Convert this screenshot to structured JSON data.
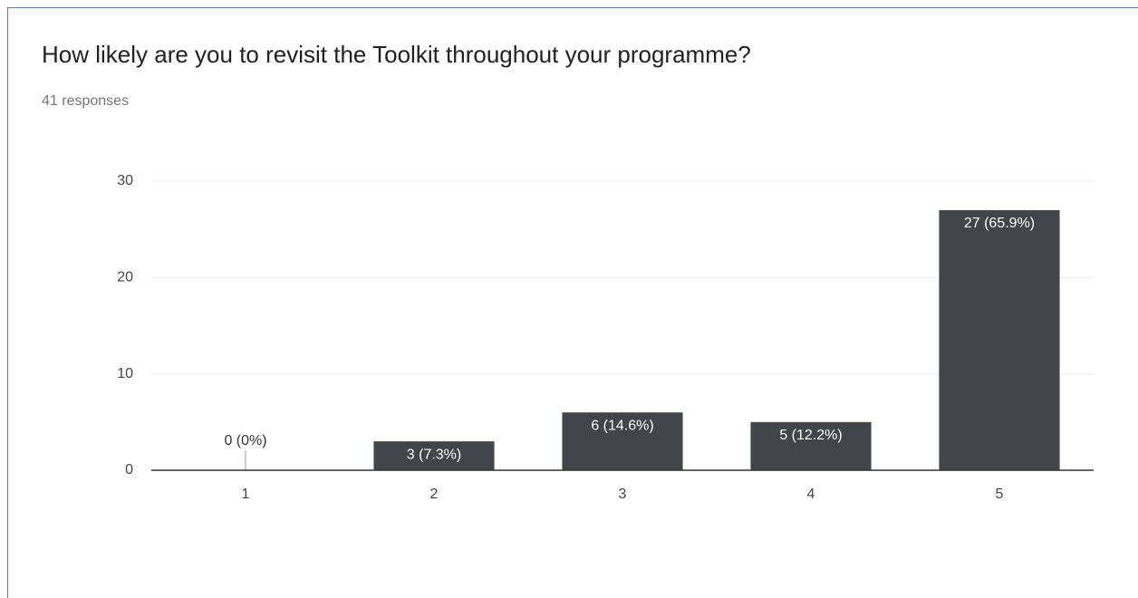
{
  "chart_data": {
    "type": "bar",
    "title": "How likely are you to revisit the Toolkit throughout your programme?",
    "subtitle": "41 responses",
    "categories": [
      "1",
      "2",
      "3",
      "4",
      "5"
    ],
    "values": [
      0,
      3,
      6,
      5,
      27
    ],
    "value_labels": [
      "0 (0%)",
      "3 (7.3%)",
      "6 (14.6%)",
      "5 (12.2%)",
      "27 (65.9%)"
    ],
    "color": "#424549",
    "ylim": [
      0,
      30
    ],
    "yticks": [
      0,
      10,
      20,
      30
    ],
    "grid": true
  }
}
